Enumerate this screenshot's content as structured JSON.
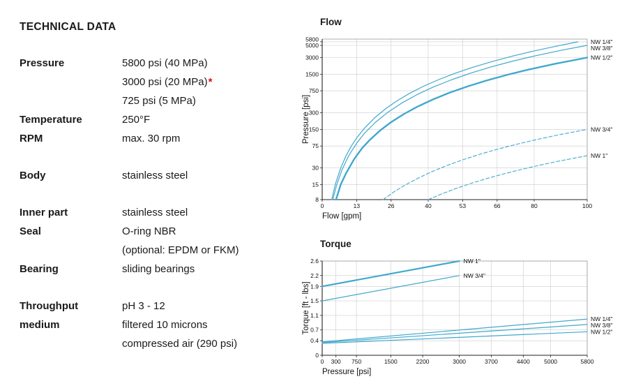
{
  "meta": {
    "background": "#ffffff",
    "accent_red": "#e30613"
  },
  "technical_data": {
    "heading": "TECHNICAL DATA",
    "groups": [
      {
        "rows": [
          {
            "label": "Pressure",
            "value": "5800 psi (40 MPa)"
          },
          {
            "label": "",
            "value": "3000 psi (20 MPa)",
            "star": "*"
          },
          {
            "label": "",
            "value": "725 psi (5 MPa)"
          },
          {
            "label": "Temperature",
            "value": "250°F"
          },
          {
            "label": "RPM",
            "value": "max. 30 rpm"
          }
        ]
      },
      {
        "rows": [
          {
            "label": "Body",
            "value": "stainless steel"
          }
        ]
      },
      {
        "rows": [
          {
            "label": "Inner part",
            "value": "stainless steel"
          },
          {
            "label": "Seal",
            "value": "O-ring NBR"
          },
          {
            "label": "",
            "value": "(optional: EPDM or FKM)"
          },
          {
            "label": "Bearing",
            "value": "sliding bearings"
          }
        ]
      },
      {
        "rows": [
          {
            "label": "Throughput",
            "value": "pH  3 - 12"
          },
          {
            "label": "medium",
            "value": "filtered 10 microns"
          },
          {
            "label": "",
            "value": "compressed air (290 psi)"
          }
        ]
      }
    ]
  },
  "chart_data": [
    {
      "type": "line",
      "title": "Flow",
      "xlabel": "Flow [gpm]",
      "ylabel": "Pressure [psi]",
      "xlim": [
        0,
        100
      ],
      "ylim": [
        8,
        5800
      ],
      "yscale": "log",
      "grid": true,
      "line_color": "#41a8cd",
      "grid_color": "#cccccc",
      "xticks": [
        0,
        13,
        26,
        40,
        53,
        66,
        80,
        100
      ],
      "yticks": [
        8,
        15,
        30,
        75,
        150,
        300,
        750,
        1500,
        3000,
        5000,
        5800
      ],
      "series": [
        {
          "name": "NW 1/4\"",
          "style": "solid",
          "width": 1.2,
          "label_at": "right",
          "points": [
            [
              3.6,
              8
            ],
            [
              5,
              15.5
            ],
            [
              7,
              30
            ],
            [
              9,
              50
            ],
            [
              11,
              75
            ],
            [
              13,
              105
            ],
            [
              16,
              159
            ],
            [
              20,
              248
            ],
            [
              24,
              357
            ],
            [
              28,
              486
            ],
            [
              33,
              675
            ],
            [
              38,
              895
            ],
            [
              44,
              1200
            ],
            [
              50,
              1550
            ],
            [
              57,
              2014
            ],
            [
              64,
              2539
            ],
            [
              72,
              3214
            ],
            [
              80,
              3968
            ],
            [
              88,
              4800
            ],
            [
              96.5,
              5800
            ]
          ]
        },
        {
          "name": "NW 3/8\"",
          "style": "solid",
          "width": 1.2,
          "label_at": "right",
          "points": [
            [
              4,
              8
            ],
            [
              5.5,
              15
            ],
            [
              7.5,
              28
            ],
            [
              10,
              50
            ],
            [
              13,
              84
            ],
            [
              16,
              128
            ],
            [
              20,
              200
            ],
            [
              25,
              312
            ],
            [
              30,
              450
            ],
            [
              36,
              648
            ],
            [
              42,
              882
            ],
            [
              49,
              1200
            ],
            [
              56,
              1568
            ],
            [
              64,
              2048
            ],
            [
              72,
              2592
            ],
            [
              80,
              3200
            ],
            [
              90,
              4050
            ],
            [
              100,
              5000
            ]
          ]
        },
        {
          "name": "NW 1/2\"",
          "style": "solid",
          "width": 2.4,
          "label_at": "right",
          "points": [
            [
              5.2,
              8
            ],
            [
              7,
              15
            ],
            [
              9,
              24
            ],
            [
              12,
              43
            ],
            [
              15,
              68
            ],
            [
              18,
              97
            ],
            [
              22,
              145
            ],
            [
              26,
              203
            ],
            [
              31,
              288
            ],
            [
              36,
              389
            ],
            [
              42,
              529
            ],
            [
              48,
              691
            ],
            [
              55,
              908
            ],
            [
              62,
              1153
            ],
            [
              70,
              1470
            ],
            [
              78,
              1825
            ],
            [
              88,
              2323
            ],
            [
              100,
              3000
            ]
          ]
        },
        {
          "name": "NW 3/4\"",
          "style": "dashed",
          "width": 1.1,
          "label_at": "right",
          "points": [
            [
              23,
              8
            ],
            [
              27,
              11
            ],
            [
              31,
              14.4
            ],
            [
              36,
              19.4
            ],
            [
              41,
              25.2
            ],
            [
              47,
              33.1
            ],
            [
              53,
              42.1
            ],
            [
              60,
              54
            ],
            [
              67,
              67.3
            ],
            [
              74,
              82.1
            ],
            [
              82,
              100.9
            ],
            [
              90,
              121.5
            ],
            [
              100,
              150
            ]
          ]
        },
        {
          "name": "NW 1\"",
          "style": "dashed",
          "width": 1.1,
          "label_at": "right",
          "points": [
            [
              40,
              8
            ],
            [
              45,
              10.1
            ],
            [
              50,
              12.5
            ],
            [
              56,
              15.7
            ],
            [
              62,
              19.2
            ],
            [
              68,
              23.1
            ],
            [
              75,
              28.1
            ],
            [
              82,
              33.6
            ],
            [
              90,
              40.5
            ],
            [
              100,
              50
            ]
          ]
        }
      ]
    },
    {
      "type": "line",
      "title": "Torque",
      "xlabel": "Pressure [psi]",
      "ylabel": "Torque [ft - lbs]",
      "xlim": [
        0,
        5800
      ],
      "ylim": [
        0,
        2.6
      ],
      "yscale": "linear",
      "grid": true,
      "line_color": "#41a8cd",
      "grid_color": "#cccccc",
      "xticks": [
        0,
        300,
        750,
        1500,
        2200,
        3000,
        3700,
        4400,
        5000,
        5800
      ],
      "yticks": [
        0,
        0.4,
        0.7,
        1.1,
        1.5,
        1.9,
        2.2,
        2.6
      ],
      "series": [
        {
          "name": "NW 1\"",
          "style": "solid",
          "width": 2.2,
          "label_at": "end",
          "points": [
            [
              0,
              1.9
            ],
            [
              3000,
              2.6
            ]
          ]
        },
        {
          "name": "NW 3/4\"",
          "style": "solid",
          "width": 1.2,
          "label_at": "end",
          "points": [
            [
              0,
              1.5
            ],
            [
              3000,
              2.2
            ]
          ]
        },
        {
          "name": "NW 1/4\"",
          "style": "solid",
          "width": 1.2,
          "label_at": "right",
          "points": [
            [
              0,
              0.37
            ],
            [
              5800,
              1.0
            ]
          ]
        },
        {
          "name": "NW 3/8\"",
          "style": "solid",
          "width": 1.2,
          "label_at": "right",
          "points": [
            [
              0,
              0.35
            ],
            [
              5800,
              0.85
            ]
          ]
        },
        {
          "name": "NW 1/2\"",
          "style": "solid",
          "width": 1.2,
          "label_at": "right",
          "points": [
            [
              0,
              0.33
            ],
            [
              5800,
              0.65
            ]
          ]
        }
      ]
    }
  ]
}
